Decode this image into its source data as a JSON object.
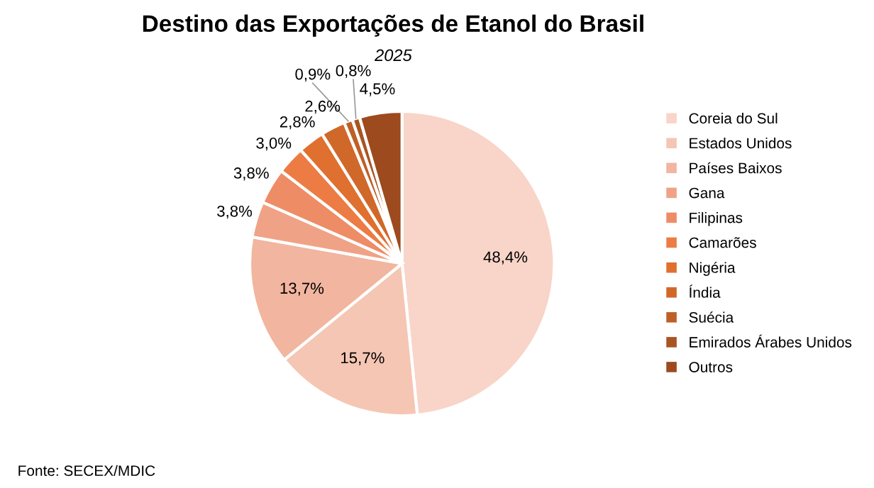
{
  "chart_data": {
    "type": "pie",
    "title": "Destino das Exportações de Etanol do Brasil",
    "subtitle": "2025",
    "categories": [
      "Coreia do Sul",
      "Estados Unidos",
      "Países Baixos",
      "Gana",
      "Filipinas",
      "Camarões",
      "Nigéria",
      "Índia",
      "Suécia",
      "Emirados Árabes Unidos",
      "Outros"
    ],
    "values": [
      48.4,
      15.7,
      13.7,
      3.8,
      3.8,
      3.0,
      2.8,
      2.6,
      0.9,
      0.8,
      4.5
    ],
    "value_labels": [
      "48,4%",
      "15,7%",
      "13,7%",
      "3,8%",
      "3,8%",
      "3,0%",
      "2,8%",
      "2,6%",
      "0,9%",
      "0,8%",
      "4,5%"
    ],
    "colors": [
      "#f8d5c8",
      "#f5c6b4",
      "#f2b59f",
      "#f0a286",
      "#ee8c66",
      "#ec7c44",
      "#e0702f",
      "#d0682a",
      "#bf5f26",
      "#a85522",
      "#9c4a1e"
    ],
    "legend": "right",
    "annotations": [
      "Fonte: SECEX/MDIC"
    ]
  }
}
